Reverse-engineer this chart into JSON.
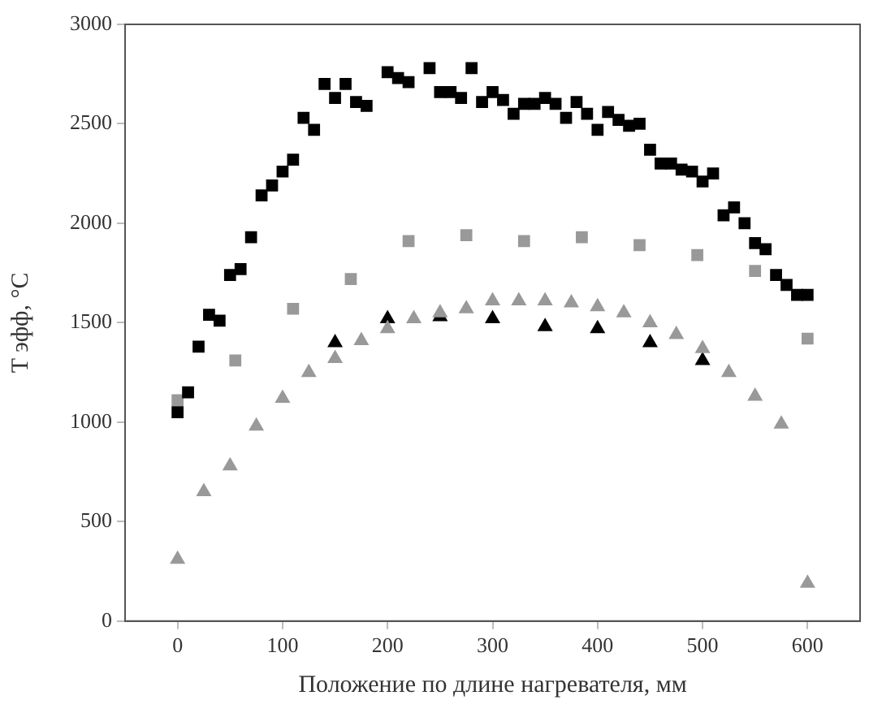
{
  "chart_data": {
    "type": "scatter",
    "xlabel": "Положение по длине нагревателя, мм",
    "ylabel": "T эфф, °C",
    "xlim": [
      -50,
      650
    ],
    "xticks": [
      0,
      100,
      200,
      300,
      400,
      500,
      600
    ],
    "ylim": [
      0,
      3000
    ],
    "yticks": [
      0,
      500,
      1000,
      1500,
      2000,
      2500,
      3000
    ],
    "grid": false,
    "legend": false,
    "series": [
      {
        "color": "#000000",
        "marker": "square",
        "x": [
          0,
          10,
          20,
          30,
          40,
          50,
          60,
          70,
          80,
          90,
          100,
          110,
          120,
          130,
          140,
          150,
          160,
          170,
          180,
          200,
          210,
          220,
          240,
          250,
          260,
          270,
          280,
          290,
          300,
          310,
          320,
          330,
          340,
          350,
          360,
          370,
          380,
          390,
          400,
          410,
          420,
          430,
          440,
          450,
          460,
          470,
          480,
          490,
          500,
          510,
          520,
          530,
          540,
          550,
          560,
          570,
          580,
          590,
          600
        ],
        "values": [
          1050,
          1150,
          1380,
          1540,
          1510,
          1740,
          1770,
          1930,
          2140,
          2190,
          2260,
          2320,
          2530,
          2470,
          2700,
          2630,
          2700,
          2610,
          2590,
          2760,
          2730,
          2710,
          2780,
          2660,
          2660,
          2630,
          2780,
          2610,
          2660,
          2620,
          2550,
          2600,
          2600,
          2630,
          2600,
          2530,
          2610,
          2550,
          2470,
          2560,
          2520,
          2490,
          2500,
          2370,
          2300,
          2300,
          2270,
          2260,
          2210,
          2250,
          2040,
          2080,
          2000,
          1900,
          1870,
          1740,
          1690,
          1640,
          1640
        ]
      },
      {
        "color": "#999999",
        "marker": "square",
        "x": [
          0,
          55,
          110,
          165,
          220,
          275,
          330,
          385,
          440,
          495,
          550,
          600
        ],
        "values": [
          1110,
          1310,
          1570,
          1720,
          1910,
          1940,
          1910,
          1930,
          1890,
          1840,
          1760,
          1420
        ]
      },
      {
        "color": "#999999",
        "marker": "triangle",
        "x": [
          0,
          25,
          50,
          75,
          100,
          125,
          150,
          175,
          200,
          225,
          250,
          275,
          300,
          325,
          350,
          375,
          400,
          425,
          450,
          475,
          500,
          525,
          550,
          575,
          600
        ],
        "values": [
          310,
          650,
          780,
          980,
          1120,
          1250,
          1320,
          1410,
          1470,
          1520,
          1550,
          1570,
          1610,
          1610,
          1610,
          1600,
          1580,
          1550,
          1500,
          1440,
          1370,
          1250,
          1130,
          990,
          190
        ]
      },
      {
        "color": "#000000",
        "marker": "triangle",
        "x": [
          150,
          200,
          250,
          300,
          350,
          400,
          450,
          500
        ],
        "values": [
          1400,
          1520,
          1530,
          1520,
          1480,
          1470,
          1400,
          1310
        ]
      }
    ]
  }
}
